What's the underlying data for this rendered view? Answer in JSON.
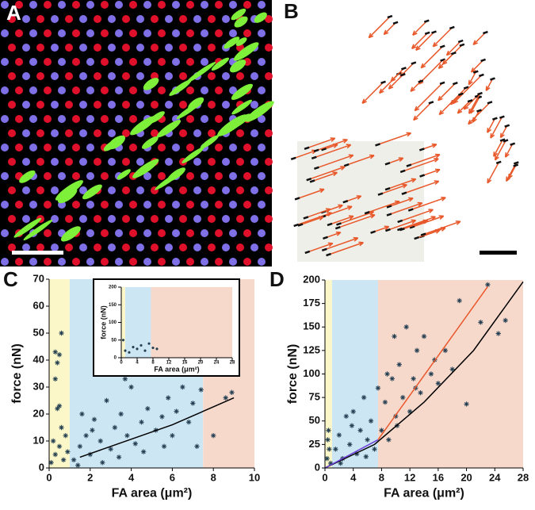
{
  "panel_labels": [
    "A",
    "B",
    "C",
    "D"
  ],
  "chart_data": [
    {
      "type": "scatter",
      "ylabel": "force (nN)",
      "xlabel": "FA area (μm²)",
      "xlim": [
        0,
        10
      ],
      "ylim": [
        0,
        70
      ],
      "xticks": [
        0,
        2,
        4,
        6,
        8,
        10
      ],
      "yticks": [
        0,
        10,
        20,
        30,
        40,
        50,
        60,
        70
      ],
      "regions": [
        {
          "x": [
            0,
            1
          ],
          "color": "#fbf7c8"
        },
        {
          "x": [
            1,
            7.5
          ],
          "color": "#cde6f4"
        },
        {
          "x": [
            7.5,
            10
          ],
          "color": "#f7d9cc"
        }
      ],
      "points": {
        "color": "#243f52",
        "x": [
          0.3,
          0.4,
          0.5,
          0.3,
          0.6,
          0.4,
          0.5,
          0.2,
          0.3,
          0.5,
          0.7,
          0.8,
          0.9,
          0.1,
          0.6,
          1.2,
          1.5,
          1.8,
          2,
          2.2,
          2.5,
          2.8,
          3,
          3.2,
          3.5,
          3.8,
          4,
          4.2,
          4.5,
          4.8,
          5,
          5.2,
          5.5,
          5.8,
          6,
          6.2,
          6.5,
          6.8,
          7,
          7.2,
          7.4,
          1.4,
          2.6,
          3.4,
          4.6,
          5.6,
          1.6,
          2.1,
          3.7,
          6.6,
          8,
          8.6,
          8.9
        ],
        "values": [
          43,
          39,
          42,
          33,
          50,
          22,
          23,
          10,
          5,
          8,
          3,
          12,
          6,
          2,
          15,
          3,
          8,
          12,
          5,
          18,
          10,
          25,
          7,
          15,
          20,
          12,
          30,
          9,
          17,
          22,
          35,
          14,
          19,
          26,
          12,
          21,
          30,
          17,
          24,
          8,
          29,
          1,
          2,
          4,
          6,
          8,
          20,
          14,
          33,
          36,
          12,
          26,
          28
        ]
      },
      "fits": [
        {
          "color": "#000000",
          "x": [
            1.5,
            3,
            4.5,
            6,
            7.5,
            9
          ],
          "values": [
            4,
            8,
            12,
            16,
            21,
            26
          ]
        }
      ],
      "inset": {
        "type": "scatter",
        "ylabel": "force (nN)",
        "xlabel": "FA area (μm²)",
        "xlim": [
          0,
          28
        ],
        "ylim": [
          0,
          200
        ],
        "xticks": [
          0,
          4,
          8,
          12,
          16,
          20,
          24,
          28
        ],
        "yticks": [
          0,
          50,
          100,
          150,
          200
        ],
        "regions": [
          {
            "x": [
              0,
              1
            ],
            "color": "#fbf7c8"
          },
          {
            "x": [
              1,
              7.5
            ],
            "color": "#cde6f4"
          },
          {
            "x": [
              7.5,
              28
            ],
            "color": "#f7d9cc"
          }
        ],
        "points": {
          "color": "#243f52",
          "x": [
            1,
            2,
            3,
            4,
            5,
            6,
            7,
            8,
            9,
            0.5
          ],
          "values": [
            20,
            15,
            30,
            25,
            35,
            20,
            40,
            28,
            25,
            50
          ]
        },
        "fits": []
      }
    },
    {
      "type": "scatter",
      "ylabel": "force (nN)",
      "xlabel": "FA area (μm²)",
      "xlim": [
        0,
        28
      ],
      "ylim": [
        0,
        200
      ],
      "xticks": [
        0,
        4,
        8,
        12,
        16,
        20,
        24,
        28
      ],
      "yticks": [
        0,
        25,
        50,
        75,
        100,
        125,
        150,
        175,
        200
      ],
      "regions": [
        {
          "x": [
            0,
            1
          ],
          "color": "#fbf7c8"
        },
        {
          "x": [
            1,
            7.5
          ],
          "color": "#cde6f4"
        },
        {
          "x": [
            7.5,
            28
          ],
          "color": "#f7d9cc"
        }
      ],
      "points": {
        "color": "#243f52",
        "x": [
          0.3,
          0.5,
          0.6,
          0.8,
          0.4,
          1.5,
          2,
          2.5,
          3,
          3.5,
          4,
          4.5,
          5,
          5.5,
          6,
          6.5,
          7,
          7.5,
          2.2,
          3.8,
          5.8,
          8,
          8.5,
          9,
          9.5,
          10,
          10.5,
          11,
          11.5,
          12,
          12.5,
          13,
          13.5,
          14,
          15,
          15.5,
          16,
          17,
          18,
          19,
          20,
          22,
          23,
          24.5,
          25.5,
          9.8,
          12.8,
          8.8,
          10.2
        ],
        "values": [
          10,
          40,
          20,
          5,
          30,
          20,
          35,
          10,
          55,
          25,
          60,
          15,
          40,
          75,
          30,
          50,
          20,
          85,
          5,
          45,
          12,
          40,
          70,
          30,
          95,
          55,
          110,
          75,
          150,
          60,
          95,
          125,
          80,
          140,
          100,
          115,
          90,
          125,
          105,
          178,
          68,
          155,
          195,
          143,
          157,
          140,
          85,
          100,
          45
        ]
      },
      "fits": [
        {
          "color": "#000000",
          "x": [
            0,
            7,
            14,
            21,
            28
          ],
          "values": [
            0,
            25,
            70,
            125,
            198
          ]
        },
        {
          "color": "#e8582a",
          "x": [
            7.5,
            23
          ],
          "values": [
            30,
            193
          ]
        },
        {
          "color": "#6a3fd8",
          "x": [
            0,
            7.5
          ],
          "values": [
            0,
            30
          ]
        }
      ]
    }
  ]
}
